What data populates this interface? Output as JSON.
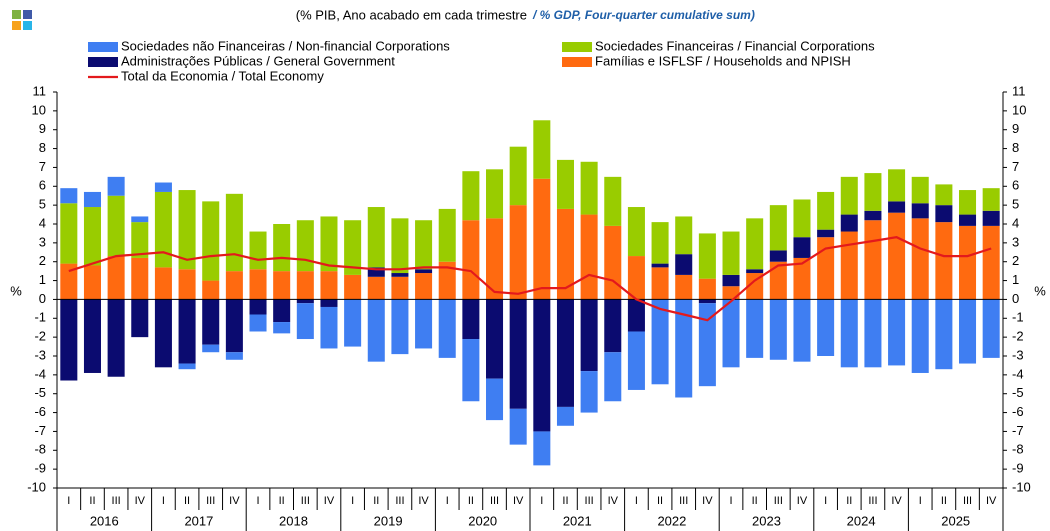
{
  "chart_data": {
    "type": "bar",
    "title": "(% PIB, Ano acabado em cada trimestre",
    "title_en": "/ % GDP, Four-quarter cumulative sum)",
    "ylabel": "%",
    "stacked": true,
    "categories": [
      "I",
      "II",
      "III",
      "IV",
      "I",
      "II",
      "III",
      "IV",
      "I",
      "II",
      "III",
      "IV",
      "I",
      "II",
      "III",
      "IV",
      "I",
      "II",
      "III",
      "IV",
      "I",
      "II",
      "III",
      "IV",
      "I",
      "II",
      "III",
      "IV",
      "I",
      "II",
      "III",
      "IV",
      "I",
      "II",
      "III",
      "IV",
      "I",
      "II",
      "III",
      "IV"
    ],
    "years": [
      "2016",
      "2017",
      "2018",
      "2019",
      "2020",
      "2021",
      "2022",
      "2023",
      "2024",
      "2025"
    ],
    "ylim": [
      -10,
      11
    ],
    "yticks": [
      -10,
      -9,
      -8,
      -7,
      -6,
      -5,
      -4,
      -3,
      -2,
      -1,
      0,
      1,
      2,
      3,
      4,
      5,
      6,
      7,
      8,
      9,
      10,
      11
    ],
    "series": [
      {
        "name": "Sociedades não Financeiras / Non-financial Corporations",
        "color": "#3f7ef2",
        "type": "bar",
        "values": [
          0.8,
          0.8,
          1.0,
          0.3,
          0.5,
          -0.3,
          -0.4,
          -0.4,
          -0.9,
          -0.6,
          -1.9,
          -2.2,
          -2.5,
          -3.3,
          -2.9,
          -2.6,
          -3.1,
          -3.3,
          -2.2,
          -1.9,
          -1.8,
          -1.0,
          -2.2,
          -2.6,
          -3.1,
          -4.5,
          -5.2,
          -4.4,
          -3.6,
          -3.1,
          -3.2,
          -3.3,
          -3.0,
          -3.6,
          -3.6,
          -3.5,
          -3.9,
          -3.7,
          -3.4,
          -3.1
        ]
      },
      {
        "name": "Sociedades Financeiras / Financial Corporations",
        "color": "#99cc00",
        "type": "bar",
        "values": [
          3.2,
          3.1,
          3.2,
          1.9,
          4.0,
          4.2,
          4.2,
          4.1,
          2.0,
          2.5,
          2.7,
          2.9,
          2.9,
          3.2,
          2.9,
          2.6,
          2.8,
          2.6,
          2.6,
          3.1,
          3.1,
          2.6,
          2.8,
          2.6,
          2.6,
          2.2,
          2.0,
          2.4,
          2.3,
          2.7,
          2.4,
          2.0,
          2.0,
          2.0,
          2.0,
          1.7,
          1.4,
          1.1,
          1.3,
          1.2
        ]
      },
      {
        "name": "Administrações Públicas / General Government",
        "color": "#0b0b70",
        "type": "bar",
        "values": [
          -4.3,
          -3.9,
          -4.1,
          -2.0,
          -3.6,
          -3.4,
          -2.4,
          -2.8,
          -0.8,
          -1.2,
          -0.2,
          -0.4,
          0.0,
          0.5,
          0.2,
          0.2,
          0.0,
          -2.1,
          -4.2,
          -5.8,
          -7.0,
          -5.7,
          -3.8,
          -2.8,
          -1.7,
          0.2,
          1.1,
          -0.2,
          0.6,
          0.2,
          0.6,
          1.1,
          0.4,
          0.9,
          0.5,
          0.6,
          0.8,
          0.9,
          0.6,
          0.8
        ]
      },
      {
        "name": "Famílias e ISFLSF / Households and NPISH",
        "color": "#ff6a10",
        "type": "bar",
        "values": [
          1.9,
          1.8,
          2.3,
          2.2,
          1.7,
          1.6,
          1.0,
          1.5,
          1.6,
          1.5,
          1.5,
          1.5,
          1.3,
          1.2,
          1.2,
          1.4,
          2.0,
          4.2,
          4.3,
          5.0,
          6.4,
          4.8,
          4.5,
          3.9,
          2.3,
          1.7,
          1.3,
          1.1,
          0.7,
          1.4,
          2.0,
          2.2,
          3.3,
          3.6,
          4.2,
          4.6,
          4.3,
          4.1,
          3.9,
          3.9
        ]
      },
      {
        "name": "Total da Economia / Total Economy",
        "color": "#e3191c",
        "type": "line",
        "values": [
          1.5,
          1.9,
          2.3,
          2.4,
          2.5,
          2.1,
          2.3,
          2.4,
          2.1,
          2.2,
          2.1,
          1.8,
          1.7,
          1.6,
          1.6,
          1.7,
          1.7,
          1.5,
          0.4,
          0.3,
          0.6,
          0.6,
          1.3,
          1.0,
          0.0,
          -0.5,
          -0.8,
          -1.1,
          -0.1,
          1.0,
          1.8,
          1.9,
          2.7,
          2.9,
          3.1,
          3.3,
          2.7,
          2.3,
          2.3,
          2.7
        ]
      }
    ]
  }
}
